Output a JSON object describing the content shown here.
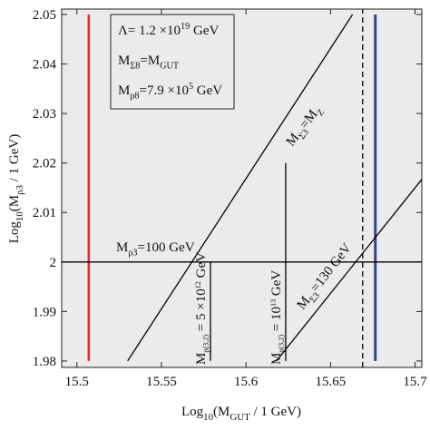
{
  "chart_data": {
    "type": "line",
    "xlim": [
      15.491,
      15.704
    ],
    "ylim": [
      1.9787,
      2.0511
    ],
    "xticks": [
      15.5,
      15.55,
      15.6,
      15.65,
      15.7
    ],
    "yticks": [
      1.98,
      1.99,
      2,
      2.01,
      2.02,
      2.03,
      2.04,
      2.05
    ],
    "x_label": [
      "Log",
      {
        "sub": "10"
      },
      "(M",
      {
        "sub": "GUT"
      },
      " / 1 GeV)"
    ],
    "y_label": [
      "Log",
      {
        "sub": "10"
      },
      "(M",
      {
        "sub": "ρ3"
      },
      " / 1 GeV)"
    ],
    "legend_box": [
      [
        "Λ= 1.2 ×10",
        {
          "sup": "19"
        },
        " GeV"
      ],
      [
        "M",
        {
          "sub": "Σ8"
        },
        "=M",
        {
          "sub": "GUT"
        }
      ],
      [
        "M",
        {
          "sub": "ρ8"
        },
        "=7.9 ×10",
        {
          "sup": "5"
        },
        " GeV"
      ]
    ],
    "annotations": [
      [
        "M",
        {
          "sub": "ρ3"
        },
        "=100 GeV"
      ],
      [
        "M",
        {
          "sub": "Σ3"
        },
        "=M",
        {
          "sub": "Z"
        }
      ],
      [
        "M",
        {
          "sub": "Σ3"
        },
        "=130 GeV"
      ],
      [
        "M",
        {
          "sub": "ρ(3,2)"
        },
        " = 5 ×10",
        {
          "sup": "12"
        },
        " GeV"
      ],
      [
        "M",
        {
          "sub": "ρ(3,2)"
        },
        " = 10",
        {
          "sup": "13"
        },
        " GeV"
      ]
    ],
    "series": [
      {
        "color": "#e8262b",
        "width": 2.5,
        "x": [
          15.507,
          15.507
        ],
        "values": [
          1.98,
          2.05
        ]
      },
      {
        "color": "#3a3f8f",
        "width": 3,
        "x": [
          15.6765,
          15.6765
        ],
        "values": [
          1.98,
          2.05
        ]
      },
      {
        "color": "#000000",
        "width": 1.3,
        "dash": true,
        "x": [
          15.669,
          15.669
        ],
        "values": [
          1.9787,
          2.0511
        ]
      },
      {
        "color": "#000000",
        "width": 1.3,
        "x": [
          15.491,
          15.704
        ],
        "values": [
          2,
          2
        ]
      },
      {
        "color": "#000000",
        "width": 1.3,
        "x": [
          15.53,
          15.663
        ],
        "values": [
          1.98,
          2.05
        ]
      },
      {
        "color": "#000000",
        "width": 1.3,
        "x": [
          15.618,
          15.704
        ],
        "values": [
          1.98,
          2.0167
        ]
      },
      {
        "color": "#000000",
        "width": 1.3,
        "x": [
          15.579,
          15.579
        ],
        "values": [
          1.98,
          2
        ]
      },
      {
        "color": "#000000",
        "width": 1.3,
        "x": [
          15.6235,
          15.6235
        ],
        "values": [
          1.98,
          2.02
        ]
      }
    ]
  }
}
